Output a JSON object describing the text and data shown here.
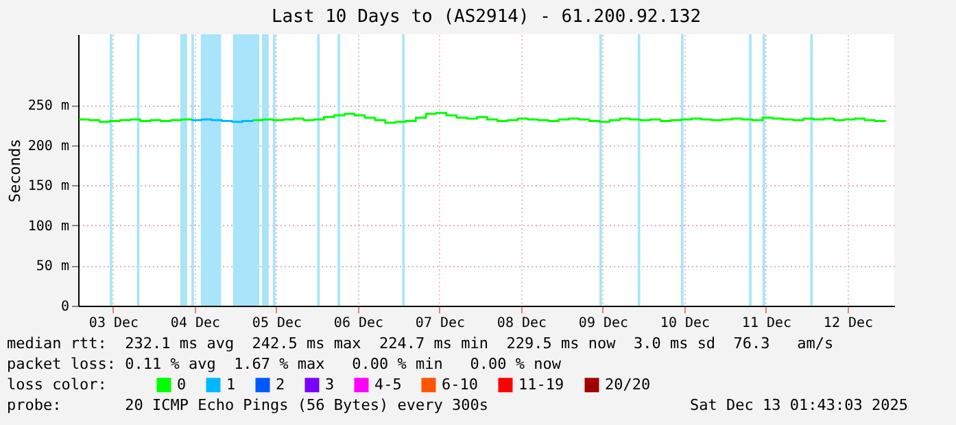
{
  "chart_data": {
    "type": "line",
    "title": "Last 10 Days to (AS2914) - 61.200.92.132",
    "ylabel": "Seconds",
    "legend_title": "loss color:",
    "legend": "bottom",
    "grid": true,
    "xlim": [
      "2025-12-03T01:43",
      "2025-12-13T01:43"
    ],
    "xticks": [
      {
        "value": "2025-12-03T12:00",
        "label": "03 Dec"
      },
      {
        "value": "2025-12-04T12:00",
        "label": "04 Dec"
      },
      {
        "value": "2025-12-05T12:00",
        "label": "05 Dec"
      },
      {
        "value": "2025-12-06T12:00",
        "label": "06 Dec"
      },
      {
        "value": "2025-12-07T12:00",
        "label": "07 Dec"
      },
      {
        "value": "2025-12-08T12:00",
        "label": "08 Dec"
      },
      {
        "value": "2025-12-09T12:00",
        "label": "09 Dec"
      },
      {
        "value": "2025-12-10T12:00",
        "label": "10 Dec"
      },
      {
        "value": "2025-12-11T12:00",
        "label": "11 Dec"
      },
      {
        "value": "2025-12-12T12:00",
        "label": "12 Dec"
      }
    ],
    "ylim": [
      0,
      338
    ],
    "yticks": [
      0,
      {
        "value": 50,
        "label": "50 m"
      },
      {
        "value": 100,
        "label": "100 m"
      },
      {
        "value": 150,
        "label": "150 m"
      },
      {
        "value": 200,
        "label": "200 m"
      },
      {
        "value": 250,
        "label": "250 m"
      }
    ],
    "x": [
      "2025-12-03T02:00",
      "2025-12-03T05:00",
      "2025-12-03T08:00",
      "2025-12-03T11:00",
      "2025-12-03T14:00",
      "2025-12-03T17:00",
      "2025-12-03T20:00",
      "2025-12-03T23:00",
      "2025-12-04T02:00",
      "2025-12-04T05:00",
      "2025-12-04T08:00",
      "2025-12-04T11:00",
      "2025-12-04T14:00",
      "2025-12-04T17:00",
      "2025-12-04T20:00",
      "2025-12-04T23:00",
      "2025-12-05T02:00",
      "2025-12-05T05:00",
      "2025-12-05T08:00",
      "2025-12-05T11:00",
      "2025-12-05T14:00",
      "2025-12-05T17:00",
      "2025-12-05T20:00",
      "2025-12-05T23:00",
      "2025-12-06T02:00",
      "2025-12-06T05:00",
      "2025-12-06T08:00",
      "2025-12-06T11:00",
      "2025-12-06T14:00",
      "2025-12-06T17:00",
      "2025-12-06T20:00",
      "2025-12-06T23:00",
      "2025-12-07T02:00",
      "2025-12-07T05:00",
      "2025-12-07T08:00",
      "2025-12-07T11:00",
      "2025-12-07T14:00",
      "2025-12-07T17:00",
      "2025-12-07T20:00",
      "2025-12-07T23:00",
      "2025-12-08T02:00",
      "2025-12-08T05:00",
      "2025-12-08T08:00",
      "2025-12-08T11:00",
      "2025-12-08T14:00",
      "2025-12-08T17:00",
      "2025-12-08T20:00",
      "2025-12-08T23:00",
      "2025-12-09T02:00",
      "2025-12-09T05:00",
      "2025-12-09T08:00",
      "2025-12-09T11:00",
      "2025-12-09T14:00",
      "2025-12-09T17:00",
      "2025-12-09T20:00",
      "2025-12-09T23:00",
      "2025-12-10T02:00",
      "2025-12-10T05:00",
      "2025-12-10T08:00",
      "2025-12-10T11:00",
      "2025-12-10T14:00",
      "2025-12-10T17:00",
      "2025-12-10T20:00",
      "2025-12-10T23:00",
      "2025-12-11T02:00",
      "2025-12-11T05:00",
      "2025-12-11T08:00",
      "2025-12-11T11:00",
      "2025-12-11T14:00",
      "2025-12-11T17:00",
      "2025-12-11T20:00",
      "2025-12-11T23:00",
      "2025-12-12T02:00",
      "2025-12-12T05:00",
      "2025-12-12T08:00",
      "2025-12-12T11:00",
      "2025-12-12T14:00",
      "2025-12-12T17:00",
      "2025-12-12T20:00",
      "2025-12-12T23:00"
    ],
    "series": [
      {
        "name": "0",
        "color": "#00ff00",
        "values": [
          232,
          231,
          229,
          230,
          231,
          232,
          230,
          231,
          230,
          231,
          232,
          231,
          null,
          null,
          null,
          null,
          null,
          231,
          232,
          231,
          232,
          233,
          231,
          232,
          235,
          237,
          239,
          237,
          234,
          231,
          228,
          229,
          230,
          234,
          239,
          240,
          237,
          234,
          233,
          235,
          232,
          230,
          231,
          233,
          232,
          231,
          230,
          232,
          233,
          232,
          230,
          229,
          231,
          233,
          232,
          231,
          232,
          230,
          231,
          232,
          233,
          232,
          231,
          232,
          233,
          232,
          231,
          234,
          233,
          232,
          231,
          233,
          232,
          233,
          231,
          232,
          233,
          231,
          230,
          231
        ]
      },
      {
        "name": "1",
        "color": "#00b8ff",
        "values": [
          null,
          null,
          null,
          null,
          null,
          null,
          null,
          null,
          null,
          null,
          null,
          231,
          232,
          231,
          230,
          229,
          230,
          231,
          null,
          null,
          null,
          null,
          null,
          null,
          null,
          null,
          null,
          null,
          null,
          null,
          null,
          null,
          null,
          null,
          null,
          null,
          null,
          null,
          null,
          null,
          null,
          null,
          null,
          null,
          null,
          null,
          null,
          null,
          null,
          null,
          null,
          null,
          null,
          null,
          null,
          null,
          null,
          null,
          null,
          null,
          null,
          null,
          null,
          null,
          null,
          null,
          null,
          null,
          null,
          null,
          null,
          null,
          null,
          null,
          null,
          null,
          null,
          null,
          null,
          null
        ]
      },
      {
        "name": "2",
        "color": "#0059ff",
        "values": [
          null,
          null,
          null,
          null,
          null,
          null,
          null,
          null,
          null,
          null,
          null,
          null,
          null,
          null,
          null,
          null,
          null,
          null,
          null,
          null,
          null,
          null,
          null,
          null,
          null,
          null,
          null,
          null,
          null,
          null,
          null,
          null,
          null,
          null,
          null,
          null,
          null,
          null,
          null,
          null,
          null,
          null,
          null,
          null,
          null,
          null,
          null,
          null,
          null,
          null,
          null,
          null,
          null,
          null,
          null,
          null,
          null,
          null,
          null,
          null,
          null,
          null,
          null,
          null,
          null,
          null,
          null,
          null,
          null,
          null,
          null,
          null,
          null,
          null,
          null,
          null,
          null,
          null,
          null,
          null
        ]
      },
      {
        "name": "3",
        "color": "#7a00ff",
        "values": [
          null,
          null,
          null,
          null,
          null,
          null,
          null,
          null,
          null,
          null,
          null,
          null,
          null,
          null,
          null,
          null,
          null,
          null,
          null,
          null,
          null,
          null,
          null,
          null,
          null,
          null,
          null,
          null,
          null,
          null,
          null,
          null,
          null,
          null,
          null,
          null,
          null,
          null,
          null,
          null,
          null,
          null,
          null,
          null,
          null,
          null,
          null,
          null,
          null,
          null,
          null,
          null,
          null,
          null,
          null,
          null,
          null,
          null,
          null,
          null,
          null,
          null,
          null,
          null,
          null,
          null,
          null,
          null,
          null,
          null,
          null,
          null,
          null,
          null,
          null,
          null,
          null,
          null,
          null,
          null
        ]
      },
      {
        "name": "4-5",
        "color": "#ff00ff",
        "values": [
          null,
          null,
          null,
          null,
          null,
          null,
          null,
          null,
          null,
          null,
          null,
          null,
          null,
          null,
          null,
          null,
          null,
          null,
          null,
          null,
          null,
          null,
          null,
          null,
          null,
          null,
          null,
          null,
          null,
          null,
          null,
          null,
          null,
          null,
          null,
          null,
          null,
          null,
          null,
          null,
          null,
          null,
          null,
          null,
          null,
          null,
          null,
          null,
          null,
          null,
          null,
          null,
          null,
          null,
          null,
          null,
          null,
          null,
          null,
          null,
          null,
          null,
          null,
          null,
          null,
          null,
          null,
          null,
          null,
          null,
          null,
          null,
          null,
          null,
          null,
          null,
          null,
          null,
          null,
          null
        ]
      },
      {
        "name": "6-10",
        "color": "#ff5500",
        "values": [
          null,
          null,
          null,
          null,
          null,
          null,
          null,
          null,
          null,
          null,
          null,
          null,
          null,
          null,
          null,
          null,
          null,
          null,
          null,
          null,
          null,
          null,
          null,
          null,
          null,
          null,
          null,
          null,
          null,
          null,
          null,
          null,
          null,
          null,
          null,
          null,
          null,
          null,
          null,
          null,
          null,
          null,
          null,
          null,
          null,
          null,
          null,
          null,
          null,
          null,
          null,
          null,
          null,
          null,
          null,
          null,
          null,
          null,
          null,
          null,
          null,
          null,
          null,
          null,
          null,
          null,
          null,
          null,
          null,
          null,
          null,
          null,
          null,
          null,
          null,
          null,
          null,
          null,
          null,
          null
        ]
      },
      {
        "name": "11-19",
        "color": "#ff0000",
        "values": [
          null,
          null,
          null,
          null,
          null,
          null,
          null,
          null,
          null,
          null,
          null,
          null,
          null,
          null,
          null,
          null,
          null,
          null,
          null,
          null,
          null,
          null,
          null,
          null,
          null,
          null,
          null,
          null,
          null,
          null,
          null,
          null,
          null,
          null,
          null,
          null,
          null,
          null,
          null,
          null,
          null,
          null,
          null,
          null,
          null,
          null,
          null,
          null,
          null,
          null,
          null,
          null,
          null,
          null,
          null,
          null,
          null,
          null,
          null,
          null,
          null,
          null,
          null,
          null,
          null,
          null,
          null,
          null,
          null,
          null,
          null,
          null,
          null,
          null,
          null,
          null,
          null,
          null,
          null,
          null
        ]
      },
      {
        "name": "20/20",
        "color": "#a10000",
        "values": [
          null,
          null,
          null,
          null,
          null,
          null,
          null,
          null,
          null,
          null,
          null,
          null,
          null,
          null,
          null,
          null,
          null,
          null,
          null,
          null,
          null,
          null,
          null,
          null,
          null,
          null,
          null,
          null,
          null,
          null,
          null,
          null,
          null,
          null,
          null,
          null,
          null,
          null,
          null,
          null,
          null,
          null,
          null,
          null,
          null,
          null,
          null,
          null,
          null,
          null,
          null,
          null,
          null,
          null,
          null,
          null,
          null,
          null,
          null,
          null,
          null,
          null,
          null,
          null,
          null,
          null,
          null,
          null,
          null,
          null,
          null,
          null,
          null,
          null,
          null,
          null,
          null,
          null,
          null,
          null
        ]
      }
    ],
    "bands": [
      {
        "axis": "x",
        "from": "2025-12-03T11:00",
        "to": "2025-12-03T11:45",
        "color": "#a8e4fa"
      },
      {
        "axis": "x",
        "from": "2025-12-03T19:00",
        "to": "2025-12-03T19:45",
        "color": "#a8e4fa"
      },
      {
        "axis": "x",
        "from": "2025-12-04T07:45",
        "to": "2025-12-04T09:45",
        "color": "#a8e4fa"
      },
      {
        "axis": "x",
        "from": "2025-12-04T11:00",
        "to": "2025-12-04T11:45",
        "color": "#a8e4fa"
      },
      {
        "axis": "x",
        "from": "2025-12-04T13:45",
        "to": "2025-12-04T19:45",
        "color": "#a8e4fa"
      },
      {
        "axis": "x",
        "from": "2025-12-04T23:15",
        "to": "2025-12-05T07:00",
        "color": "#a8e4fa"
      },
      {
        "axis": "x",
        "from": "2025-12-05T07:45",
        "to": "2025-12-05T09:45",
        "color": "#a8e4fa"
      },
      {
        "axis": "x",
        "from": "2025-12-05T11:00",
        "to": "2025-12-05T11:45",
        "color": "#a8e4fa"
      },
      {
        "axis": "x",
        "from": "2025-12-06T00:00",
        "to": "2025-12-06T00:45",
        "color": "#a8e4fa"
      },
      {
        "axis": "x",
        "from": "2025-12-06T06:00",
        "to": "2025-12-06T06:45",
        "color": "#a8e4fa"
      },
      {
        "axis": "x",
        "from": "2025-12-07T01:00",
        "to": "2025-12-07T01:45",
        "color": "#a8e4fa"
      },
      {
        "axis": "x",
        "from": "2025-12-09T11:00",
        "to": "2025-12-09T11:45",
        "color": "#a8e4fa"
      },
      {
        "axis": "x",
        "from": "2025-12-09T22:15",
        "to": "2025-12-09T23:00",
        "color": "#a8e4fa"
      },
      {
        "axis": "x",
        "from": "2025-12-10T11:00",
        "to": "2025-12-10T11:45",
        "color": "#a8e4fa"
      },
      {
        "axis": "x",
        "from": "2025-12-11T07:00",
        "to": "2025-12-11T07:45",
        "color": "#a8e4fa"
      },
      {
        "axis": "x",
        "from": "2025-12-11T11:00",
        "to": "2025-12-11T11:45",
        "color": "#a8e4fa"
      },
      {
        "axis": "x",
        "from": "2025-12-12T01:00",
        "to": "2025-12-12T01:45",
        "color": "#a8e4fa"
      }
    ],
    "annotations": [
      "median rtt:  232.1 ms avg  242.5 ms max  224.7 ms min  229.5 ms now  3.0 ms sd  76.3   am/s",
      "packet loss: 0.11 % avg  1.67 % max   0.00 % min   0.00 % now",
      "probe:       20 ICMP Echo Pings (56 Bytes) every 300s",
      "Sat Dec 13 01:43:03 2025"
    ]
  }
}
